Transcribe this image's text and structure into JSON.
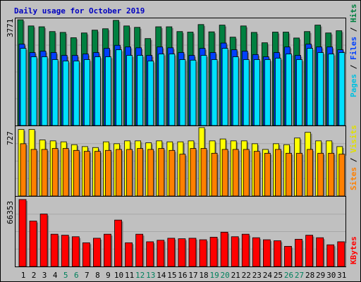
{
  "colors": {
    "background": "#c0c0c0",
    "panel": "#c0c0c0",
    "title": "#0000c0",
    "hits": "#008040",
    "files": "#0040ff",
    "pages": "#00e0ff",
    "visits": "#ffff00",
    "sites": "#ff8000",
    "kbytes": "#ff0000",
    "weekday_label": "#000000",
    "weekend_label": "#00805c"
  },
  "chart_data": {
    "type": "bar",
    "title": "Daily usage for October 2019",
    "categories": [
      "1",
      "2",
      "3",
      "4",
      "5",
      "6",
      "7",
      "8",
      "9",
      "10",
      "11",
      "12",
      "13",
      "14",
      "15",
      "16",
      "17",
      "18",
      "19",
      "20",
      "21",
      "22",
      "23",
      "24",
      "25",
      "26",
      "27",
      "28",
      "29",
      "30",
      "31"
    ],
    "weekend_days": [
      "5",
      "6",
      "12",
      "13",
      "19",
      "20",
      "26",
      "27"
    ],
    "panels": [
      {
        "name": "requests",
        "max_label": "3771",
        "ylim": [
          0,
          3771
        ],
        "legend": [
          "Pages",
          "Files",
          "Hits"
        ],
        "series": [
          {
            "name": "Hits",
            "values": [
              3771,
              3550,
              3520,
              3350,
              3320,
              3130,
              3300,
              3400,
              3450,
              3750,
              3550,
              3500,
              3100,
              3520,
              3520,
              3350,
              3330,
              3600,
              3340,
              3580,
              3150,
              3550,
              3320,
              2950,
              3330,
              3330,
              3120,
              3350,
              3580,
              3300,
              3380
            ]
          },
          {
            "name": "Files",
            "values": [
              2900,
              2600,
              2650,
              2600,
              2500,
              2500,
              2550,
              2600,
              2750,
              2860,
              2800,
              2770,
              2500,
              2800,
              2770,
              2600,
              2500,
              2750,
              2600,
              2940,
              2700,
              2650,
              2530,
              2450,
              2600,
              2800,
              2500,
              2900,
              2800,
              2800,
              2700
            ]
          },
          {
            "name": "Pages",
            "values": [
              2750,
              2450,
              2450,
              2350,
              2300,
              2300,
              2350,
              2450,
              2450,
              2700,
              2500,
              2500,
              2300,
              2550,
              2550,
              2350,
              2330,
              2500,
              2350,
              2750,
              2450,
              2350,
              2350,
              2350,
              2400,
              2550,
              2350,
              2750,
              2600,
              2550,
              2600
            ]
          }
        ]
      },
      {
        "name": "visitors",
        "max_label": "727",
        "ylim": [
          0,
          727
        ],
        "legend": [
          "Sites",
          "Visits"
        ],
        "series": [
          {
            "name": "Visits",
            "values": [
              700,
              700,
              590,
              580,
              570,
              540,
              520,
              510,
              570,
              550,
              580,
              580,
              560,
              580,
              570,
              570,
              580,
              720,
              580,
              600,
              580,
              580,
              550,
              490,
              550,
              540,
              610,
              670,
              580,
              580,
              520
            ]
          },
          {
            "name": "Sites",
            "values": [
              550,
              490,
              490,
              500,
              500,
              480,
              470,
              470,
              480,
              490,
              490,
              500,
              490,
              500,
              480,
              440,
              500,
              500,
              450,
              490,
              490,
              490,
              470,
              450,
              490,
              450,
              450,
              490,
              450,
              450,
              440
            ]
          }
        ]
      },
      {
        "name": "traffic",
        "max_label": "66353",
        "ylim": [
          0,
          66353
        ],
        "legend": [
          "KBytes"
        ],
        "series": [
          {
            "name": "KBytes",
            "values": [
              66353,
              45000,
              52000,
              32000,
              31000,
              29500,
              23500,
              28000,
              32000,
              46000,
              23500,
              32000,
              24500,
              26000,
              28000,
              27500,
              28000,
              26500,
              29000,
              34000,
              29500,
              32000,
              28500,
              26500,
              25500,
              20000,
              27000,
              31000,
              28500,
              21500,
              24500
            ]
          }
        ]
      }
    ]
  }
}
